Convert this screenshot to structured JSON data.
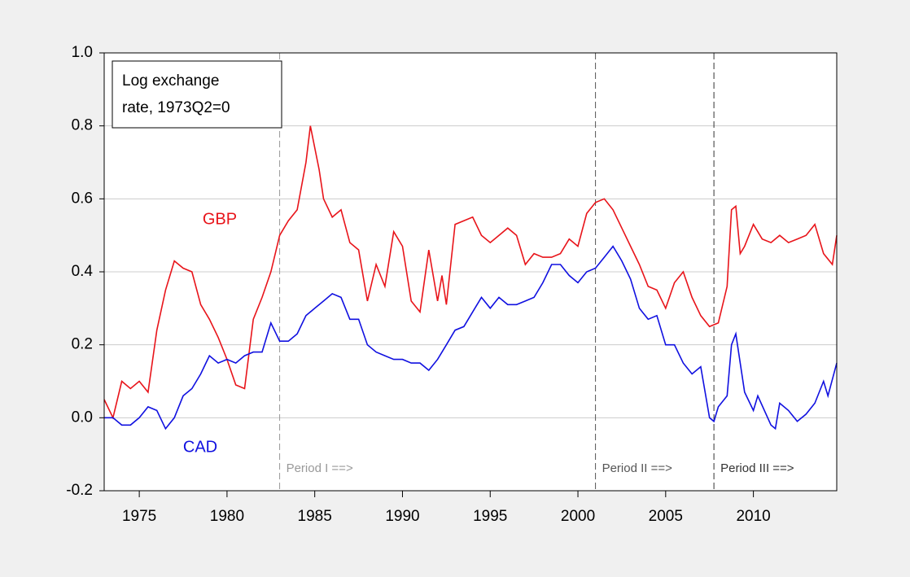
{
  "chart_data": {
    "type": "line",
    "note": [
      "Log exchange",
      "rate, 1973Q2=0"
    ],
    "xlim": [
      1973,
      2014.75
    ],
    "xticks": [
      1975,
      1980,
      1985,
      1990,
      1995,
      2000,
      2005,
      2010
    ],
    "ylim": [
      -0.2,
      1.0
    ],
    "yticks": [
      -0.2,
      {
        "value": 0,
        "label": "0.0"
      },
      0.2,
      0.4,
      0.6,
      0.8,
      {
        "value": 1,
        "label": "1.0"
      }
    ],
    "grid": true,
    "vlines": [
      {
        "value": 1983,
        "label": "Period I ==>",
        "color": "#999999"
      },
      {
        "value": 2001,
        "label": "Period II ==>",
        "color": "#555555"
      },
      {
        "value": 2007.75,
        "label": "Period III ==>",
        "color": "#333333"
      }
    ],
    "series": [
      {
        "name": "GBP",
        "color": "#e8141a",
        "x": [
          1973.0,
          1973.5,
          1974.0,
          1974.5,
          1975.0,
          1975.5,
          1976.0,
          1976.5,
          1977.0,
          1977.5,
          1978.0,
          1978.5,
          1979.0,
          1979.5,
          1980.0,
          1980.5,
          1981.0,
          1981.5,
          1982.0,
          1982.5,
          1983.0,
          1983.5,
          1984.0,
          1984.5,
          1984.75,
          1985.25,
          1985.5,
          1986.0,
          1986.5,
          1987.0,
          1987.5,
          1988.0,
          1988.5,
          1989.0,
          1989.5,
          1990.0,
          1990.5,
          1991.0,
          1991.5,
          1992.0,
          1992.25,
          1992.5,
          1993.0,
          1993.5,
          1994.0,
          1994.5,
          1995.0,
          1995.5,
          1996.0,
          1996.5,
          1997.0,
          1997.5,
          1998.0,
          1998.5,
          1999.0,
          1999.5,
          2000.0,
          2000.5,
          2001.0,
          2001.5,
          2002.0,
          2002.5,
          2003.0,
          2003.5,
          2004.0,
          2004.5,
          2005.0,
          2005.5,
          2006.0,
          2006.5,
          2007.0,
          2007.5,
          2008.0,
          2008.5,
          2008.75,
          2009.0,
          2009.25,
          2009.5,
          2010.0,
          2010.5,
          2011.0,
          2011.5,
          2012.0,
          2012.5,
          2013.0,
          2013.5,
          2014.0,
          2014.5,
          2014.75
        ],
        "values": [
          0.05,
          0.0,
          0.1,
          0.08,
          0.1,
          0.07,
          0.24,
          0.35,
          0.43,
          0.41,
          0.4,
          0.31,
          0.27,
          0.22,
          0.16,
          0.09,
          0.08,
          0.27,
          0.33,
          0.4,
          0.5,
          0.54,
          0.57,
          0.7,
          0.8,
          0.68,
          0.6,
          0.55,
          0.57,
          0.48,
          0.46,
          0.32,
          0.42,
          0.36,
          0.51,
          0.47,
          0.32,
          0.29,
          0.46,
          0.32,
          0.39,
          0.31,
          0.53,
          0.54,
          0.55,
          0.5,
          0.48,
          0.5,
          0.52,
          0.5,
          0.42,
          0.45,
          0.44,
          0.44,
          0.45,
          0.49,
          0.47,
          0.56,
          0.59,
          0.6,
          0.57,
          0.52,
          0.47,
          0.42,
          0.36,
          0.35,
          0.3,
          0.37,
          0.4,
          0.33,
          0.28,
          0.25,
          0.26,
          0.36,
          0.57,
          0.58,
          0.45,
          0.47,
          0.53,
          0.49,
          0.48,
          0.5,
          0.48,
          0.49,
          0.5,
          0.53,
          0.45,
          0.42,
          0.5
        ]
      },
      {
        "name": "CAD",
        "color": "#1010e0",
        "x": [
          1973.0,
          1973.5,
          1974.0,
          1974.5,
          1975.0,
          1975.5,
          1976.0,
          1976.5,
          1977.0,
          1977.5,
          1978.0,
          1978.5,
          1979.0,
          1979.5,
          1980.0,
          1980.5,
          1981.0,
          1981.5,
          1982.0,
          1982.5,
          1983.0,
          1983.5,
          1984.0,
          1984.5,
          1985.0,
          1985.5,
          1986.0,
          1986.5,
          1987.0,
          1987.5,
          1988.0,
          1988.5,
          1989.0,
          1989.5,
          1990.0,
          1990.5,
          1991.0,
          1991.5,
          1992.0,
          1992.5,
          1993.0,
          1993.5,
          1994.0,
          1994.5,
          1995.0,
          1995.5,
          1996.0,
          1996.5,
          1997.0,
          1997.5,
          1998.0,
          1998.5,
          1999.0,
          1999.5,
          2000.0,
          2000.5,
          2001.0,
          2001.5,
          2002.0,
          2002.5,
          2003.0,
          2003.5,
          2004.0,
          2004.5,
          2005.0,
          2005.5,
          2006.0,
          2006.5,
          2007.0,
          2007.5,
          2007.75,
          2008.0,
          2008.5,
          2008.75,
          2009.0,
          2009.5,
          2010.0,
          2010.25,
          2011.0,
          2011.25,
          2011.5,
          2012.0,
          2012.5,
          2013.0,
          2013.5,
          2014.0,
          2014.25,
          2014.75
        ],
        "values": [
          0.0,
          0.0,
          -0.02,
          -0.02,
          0.0,
          0.03,
          0.02,
          -0.03,
          0.0,
          0.06,
          0.08,
          0.12,
          0.17,
          0.15,
          0.16,
          0.15,
          0.17,
          0.18,
          0.18,
          0.26,
          0.21,
          0.21,
          0.23,
          0.28,
          0.3,
          0.32,
          0.34,
          0.33,
          0.27,
          0.27,
          0.2,
          0.18,
          0.17,
          0.16,
          0.16,
          0.15,
          0.15,
          0.13,
          0.16,
          0.2,
          0.24,
          0.25,
          0.29,
          0.33,
          0.3,
          0.33,
          0.31,
          0.31,
          0.32,
          0.33,
          0.37,
          0.42,
          0.42,
          0.39,
          0.37,
          0.4,
          0.41,
          0.44,
          0.47,
          0.43,
          0.38,
          0.3,
          0.27,
          0.28,
          0.2,
          0.2,
          0.15,
          0.12,
          0.14,
          0.0,
          -0.01,
          0.03,
          0.06,
          0.2,
          0.23,
          0.07,
          0.02,
          0.06,
          -0.02,
          -0.03,
          0.04,
          0.02,
          -0.01,
          0.01,
          0.04,
          0.1,
          0.06,
          0.15
        ]
      }
    ]
  }
}
